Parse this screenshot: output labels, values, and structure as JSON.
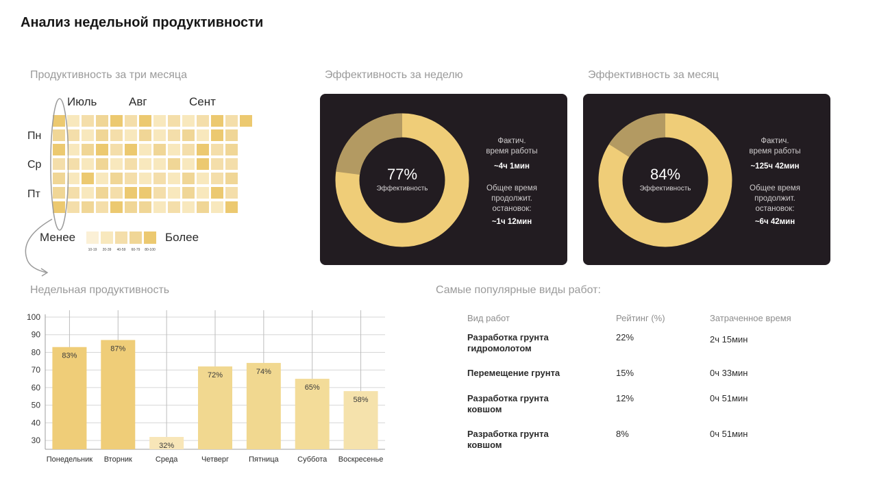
{
  "title": "Анализ недельной продуктивности",
  "heatmap": {
    "title": "Продуктивность за три месяца",
    "months": [
      "Июль",
      "Авг",
      "Сент"
    ],
    "days": [
      "Пн",
      "Ср",
      "Пт"
    ],
    "legend_less": "Менее",
    "legend_more": "Более",
    "legend_ticks": [
      "10-19",
      "20-39",
      "40-59",
      "60-79",
      "80-100"
    ],
    "palette": [
      "#fbf0d6",
      "#f8e8bd",
      "#f4deaa",
      "#f0d696",
      "#ecc970"
    ]
  },
  "week_card": {
    "title": "Эффективность за неделю",
    "percent_value": 77,
    "percent_text": "77%",
    "percent_label": "Эффективность",
    "actual_label": "Фактич.\nвремя работы",
    "actual_value": "~4ч 1мин",
    "stops_label": "Общее время\nпродолжит.\nостановок:",
    "stops_value": "~1ч 12мин"
  },
  "month_card": {
    "title": "Эффективность за месяц",
    "percent_value": 84,
    "percent_text": "84%",
    "percent_label": "Эффективность",
    "actual_label": "Фактич.\nвремя работы",
    "actual_value": "~125ч 42мин",
    "stops_label": "Общее время\nпродолжит.\nостановок:",
    "stops_value": "~6ч 42мин"
  },
  "colors": {
    "gold": "#efcd78",
    "gold_dark": "#b39a62",
    "card_bg": "#221c21"
  },
  "chart_data": {
    "type": "bar",
    "title": "Недельная продуктивность",
    "categories": [
      "Понедельник",
      "Вторник",
      "Среда",
      "Четверг",
      "Пятница",
      "Суббота",
      "Воскресенье"
    ],
    "values": [
      83,
      87,
      32,
      72,
      74,
      65,
      58
    ],
    "value_labels": [
      "83%",
      "87%",
      "32%",
      "72%",
      "74%",
      "65%",
      "58%"
    ],
    "yticks": [
      30,
      40,
      50,
      60,
      70,
      80,
      90,
      100
    ],
    "ylim": [
      25,
      100
    ],
    "grid": true,
    "xlabel": "",
    "ylabel": ""
  },
  "popular": {
    "title": "Самые популярные виды работ:",
    "headers": [
      "Вид работ",
      "Рейтинг (%)",
      "Затраченное время"
    ],
    "rows": [
      {
        "name": "Разработка грунта гидромолотом",
        "rating": "22%",
        "time": "2ч 15мин"
      },
      {
        "name": "Перемещение грунта",
        "rating": "15%",
        "time": "0ч 33мин"
      },
      {
        "name": "Разработка грунта ковшом",
        "rating": "12%",
        "time": "0ч 51мин"
      },
      {
        "name": "Разработка грунта ковшом",
        "rating": "8%",
        "time": "0ч 51мин"
      }
    ]
  }
}
